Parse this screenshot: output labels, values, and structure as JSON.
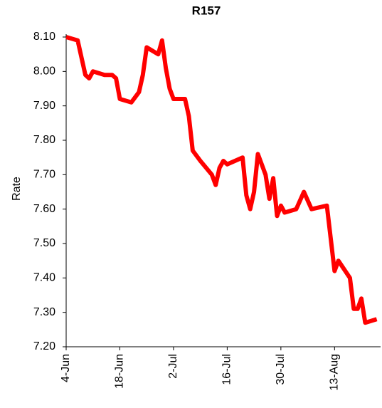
{
  "chart_data": {
    "type": "line",
    "title": "R157",
    "ylabel": "Rate",
    "x": [
      "4-Jun",
      "7-Jun",
      "9-Jun",
      "10-Jun",
      "11-Jun",
      "14-Jun",
      "16-Jun",
      "17-Jun",
      "18-Jun",
      "21-Jun",
      "23-Jun",
      "24-Jun",
      "25-Jun",
      "28-Jun",
      "29-Jun",
      "30-Jun",
      "1-Jul",
      "2-Jul",
      "5-Jul",
      "6-Jul",
      "7-Jul",
      "9-Jul",
      "12-Jul",
      "13-Jul",
      "14-Jul",
      "15-Jul",
      "16-Jul",
      "20-Jul",
      "21-Jul",
      "22-Jul",
      "23-Jul",
      "24-Jul",
      "26-Jul",
      "27-Jul",
      "28-Jul",
      "29-Jul",
      "30-Jul",
      "31-Jul",
      "3-Aug",
      "5-Aug",
      "7-Aug",
      "11-Aug",
      "13-Aug",
      "14-Aug",
      "17-Aug",
      "18-Aug",
      "19-Aug",
      "20-Aug",
      "21-Aug",
      "24-Aug"
    ],
    "series": [
      {
        "name": "R157",
        "color": "#ff0000",
        "values": [
          8.1,
          8.09,
          7.99,
          7.98,
          8.0,
          7.99,
          7.99,
          7.98,
          7.92,
          7.91,
          7.94,
          7.99,
          8.07,
          8.05,
          8.09,
          8.01,
          7.95,
          7.92,
          7.92,
          7.87,
          7.77,
          7.74,
          7.7,
          7.67,
          7.72,
          7.74,
          7.73,
          7.75,
          7.64,
          7.6,
          7.65,
          7.76,
          7.7,
          7.63,
          7.69,
          7.58,
          7.61,
          7.59,
          7.6,
          7.65,
          7.6,
          7.61,
          7.42,
          7.45,
          7.4,
          7.31,
          7.31,
          7.34,
          7.27,
          7.28
        ]
      }
    ],
    "xlim": [
      "4-Jun",
      "25-Aug"
    ],
    "xticks": [
      "4-Jun",
      "18-Jun",
      "2-Jul",
      "16-Jul",
      "30-Jul",
      "13-Aug"
    ],
    "ylim": [
      7.2,
      8.1
    ],
    "yticks": [
      {
        "value": 7.2,
        "label": "7.20"
      },
      {
        "value": 7.3,
        "label": "7.30"
      },
      {
        "value": 7.4,
        "label": "7.40"
      },
      {
        "value": 7.5,
        "label": "7.50"
      },
      {
        "value": 7.6,
        "label": "7.60"
      },
      {
        "value": 7.7,
        "label": "7.70"
      },
      {
        "value": 7.8,
        "label": "7.80"
      },
      {
        "value": 7.9,
        "label": "7.90"
      },
      {
        "value": 8.0,
        "label": "8.00"
      },
      {
        "value": 8.1,
        "label": "8.10"
      }
    ],
    "grid": false
  }
}
